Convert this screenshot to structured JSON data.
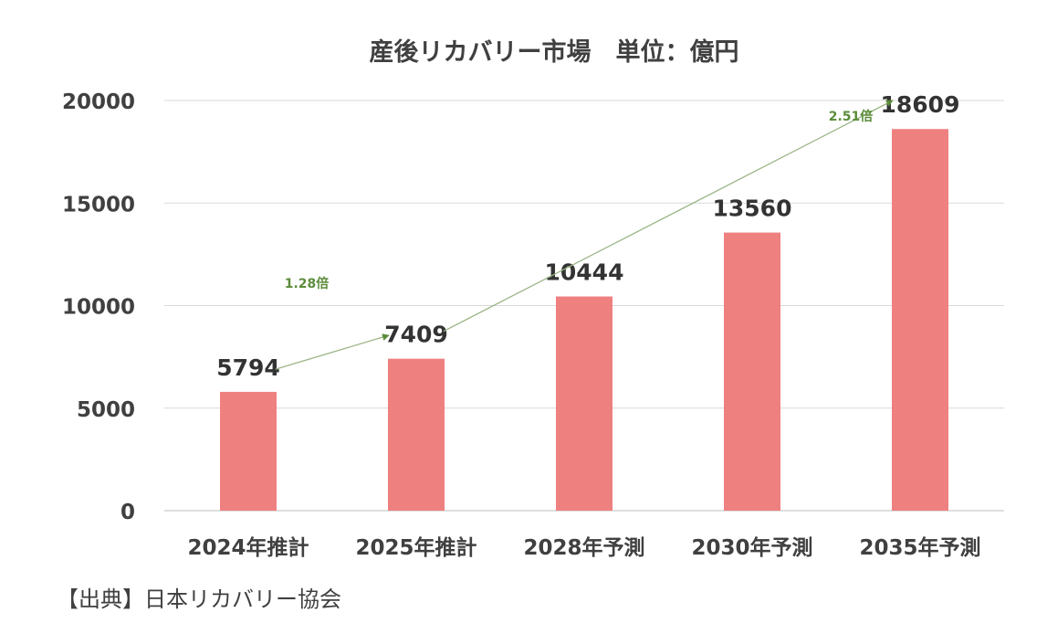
{
  "chart_data": {
    "type": "bar",
    "title": "産後リカバリー市場　単位：億円",
    "categories": [
      "2024年推計",
      "2025年推計",
      "2028年予測",
      "2030年予測",
      "2035年予測"
    ],
    "values": [
      5794,
      7409,
      10444,
      13560,
      18609
    ],
    "data_labels": [
      "5794",
      "7409",
      "10444",
      "13560",
      "18609"
    ],
    "yticks": [
      "0",
      "5000",
      "10000",
      "15000",
      "20000"
    ],
    "ylim": [
      0,
      20000
    ],
    "grid": true,
    "legend": "none",
    "bar_color": "#EF8080",
    "annotations": [
      {
        "text": "1.28倍",
        "from_category": 0,
        "to_category": 1,
        "from_value": 6900,
        "to_value": 8550
      },
      {
        "text": "2.51倍",
        "from_category": 1,
        "to_category": 4,
        "from_value": 8750,
        "to_value": 20000
      }
    ],
    "annotation_color": "#5B8C3A"
  },
  "source_note": "【出典】日本リカバリー協会"
}
